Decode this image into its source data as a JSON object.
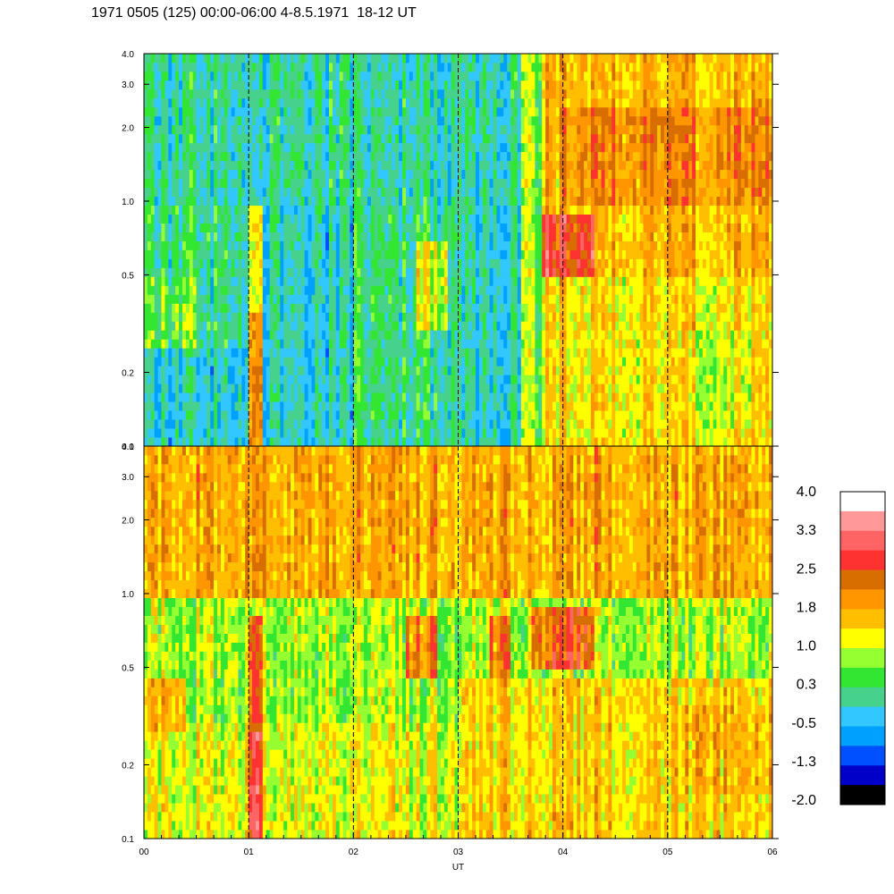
{
  "title": "1971 0505 (125) 00:00-06:00 4-8.5.1971  18-12 UT",
  "chart_data": {
    "type": "heatmap",
    "title": "1971 0505 (125) 00:00-06:00 4-8.5.1971  18-12 UT",
    "xlabel": "UT",
    "x_ticks": [
      "00",
      "01",
      "02",
      "03",
      "04",
      "05",
      "06"
    ],
    "xlim": [
      0,
      6
    ],
    "hour_markers": [
      1,
      2,
      3,
      4,
      5
    ],
    "panels": [
      {
        "name": "upper-panel",
        "y_scale": "log",
        "ylim": [
          0.1,
          4.0
        ],
        "y_ticks": [
          {
            "value": 0.1,
            "label": "0.1"
          },
          {
            "value": 0.2,
            "label": "0.2"
          },
          {
            "value": 0.5,
            "label": "0.5"
          },
          {
            "value": 1.0,
            "label": "1.0"
          },
          {
            "value": 2.0,
            "label": "2.0"
          },
          {
            "value": 3.0,
            "label": "3.0"
          },
          {
            "value": 4.0,
            "label": "4.0"
          }
        ],
        "regions": [
          {
            "x": [
              0.0,
              0.3
            ],
            "y": [
              0.1,
              0.25
            ],
            "value": -0.5
          },
          {
            "x": [
              0.0,
              0.5
            ],
            "y": [
              0.25,
              0.5
            ],
            "value": 0.3
          },
          {
            "x": [
              0.0,
              1.0
            ],
            "y": [
              0.5,
              1.0
            ],
            "value": 0.0
          },
          {
            "x": [
              0.0,
              3.6
            ],
            "y": [
              1.0,
              4.0
            ],
            "value": -0.2
          },
          {
            "x": [
              0.3,
              1.0
            ],
            "y": [
              0.1,
              0.25
            ],
            "value": -0.4
          },
          {
            "x": [
              0.5,
              1.0
            ],
            "y": [
              0.25,
              0.5
            ],
            "value": -0.1
          },
          {
            "x": [
              1.0,
              1.12
            ],
            "y": [
              0.1,
              0.35
            ],
            "value": 1.8
          },
          {
            "x": [
              1.0,
              1.12
            ],
            "y": [
              0.35,
              1.0
            ],
            "value": 1.0
          },
          {
            "x": [
              1.12,
              2.0
            ],
            "y": [
              0.1,
              1.0
            ],
            "value": -0.4
          },
          {
            "x": [
              2.0,
              3.0
            ],
            "y": [
              0.1,
              1.0
            ],
            "value": 0.0
          },
          {
            "x": [
              2.6,
              2.9
            ],
            "y": [
              0.3,
              0.7
            ],
            "value": 0.9
          },
          {
            "x": [
              3.0,
              3.6
            ],
            "y": [
              0.1,
              1.0
            ],
            "value": -0.3
          },
          {
            "x": [
              3.6,
              3.8
            ],
            "y": [
              0.1,
              4.0
            ],
            "value": 0.6
          },
          {
            "x": [
              3.8,
              6.0
            ],
            "y": [
              0.1,
              0.5
            ],
            "value": 1.2
          },
          {
            "x": [
              3.8,
              6.0
            ],
            "y": [
              0.5,
              4.0
            ],
            "value": 1.5
          },
          {
            "x": [
              3.8,
              4.3
            ],
            "y": [
              0.5,
              0.9
            ],
            "value": 2.5
          },
          {
            "x": [
              4.0,
              6.0
            ],
            "y": [
              1.0,
              2.5
            ],
            "value": 1.9
          },
          {
            "x": [
              5.2,
              5.8
            ],
            "y": [
              0.12,
              0.3
            ],
            "value": 0.9
          }
        ]
      },
      {
        "name": "lower-panel",
        "y_scale": "log",
        "ylim": [
          0.1,
          4.0
        ],
        "y_ticks": [
          {
            "value": 0.1,
            "label": "0.1"
          },
          {
            "value": 0.2,
            "label": "0.2"
          },
          {
            "value": 0.5,
            "label": "0.5"
          },
          {
            "value": 1.0,
            "label": "1.0"
          },
          {
            "value": 2.0,
            "label": "2.0"
          },
          {
            "value": 3.0,
            "label": "3.0"
          },
          {
            "value": 4.0,
            "label": "4.0"
          }
        ],
        "regions": [
          {
            "x": [
              0.0,
              6.0
            ],
            "y": [
              1.0,
              4.0
            ],
            "value": 1.6
          },
          {
            "x": [
              0.0,
              6.0
            ],
            "y": [
              0.1,
              0.3
            ],
            "value": 1.0
          },
          {
            "x": [
              0.0,
              6.0
            ],
            "y": [
              0.3,
              1.0
            ],
            "value": 0.7
          },
          {
            "x": [
              0.0,
              0.4
            ],
            "y": [
              0.28,
              0.45
            ],
            "value": 1.5
          },
          {
            "x": [
              1.0,
              1.12
            ],
            "y": [
              0.1,
              0.28
            ],
            "value": 2.5
          },
          {
            "x": [
              1.0,
              1.12
            ],
            "y": [
              0.28,
              0.8
            ],
            "value": 2.1
          },
          {
            "x": [
              2.5,
              2.8
            ],
            "y": [
              0.45,
              0.8
            ],
            "value": 1.9
          },
          {
            "x": [
              3.3,
              3.5
            ],
            "y": [
              0.4,
              0.8
            ],
            "value": 1.9
          },
          {
            "x": [
              3.7,
              4.3
            ],
            "y": [
              0.5,
              0.9
            ],
            "value": 2.2
          },
          {
            "x": [
              3.0,
              6.0
            ],
            "y": [
              0.1,
              0.45
            ],
            "value": 1.3
          },
          {
            "x": [
              5.1,
              6.0
            ],
            "y": [
              0.15,
              0.35
            ],
            "value": 1.5
          }
        ]
      }
    ],
    "colorbar": {
      "labels": [
        "4.0",
        "3.3",
        "2.5",
        "1.8",
        "1.0",
        "0.3",
        "-0.5",
        "-1.3",
        "-2.0"
      ],
      "colors": [
        "#ffffff",
        "#ff9898",
        "#ff6464",
        "#ff3232",
        "#d86e00",
        "#ff9600",
        "#ffbe00",
        "#ffff00",
        "#96ff32",
        "#32e632",
        "#46d28c",
        "#32c8ff",
        "#00a0ff",
        "#0050ff",
        "#0000c8",
        "#000000"
      ]
    }
  }
}
